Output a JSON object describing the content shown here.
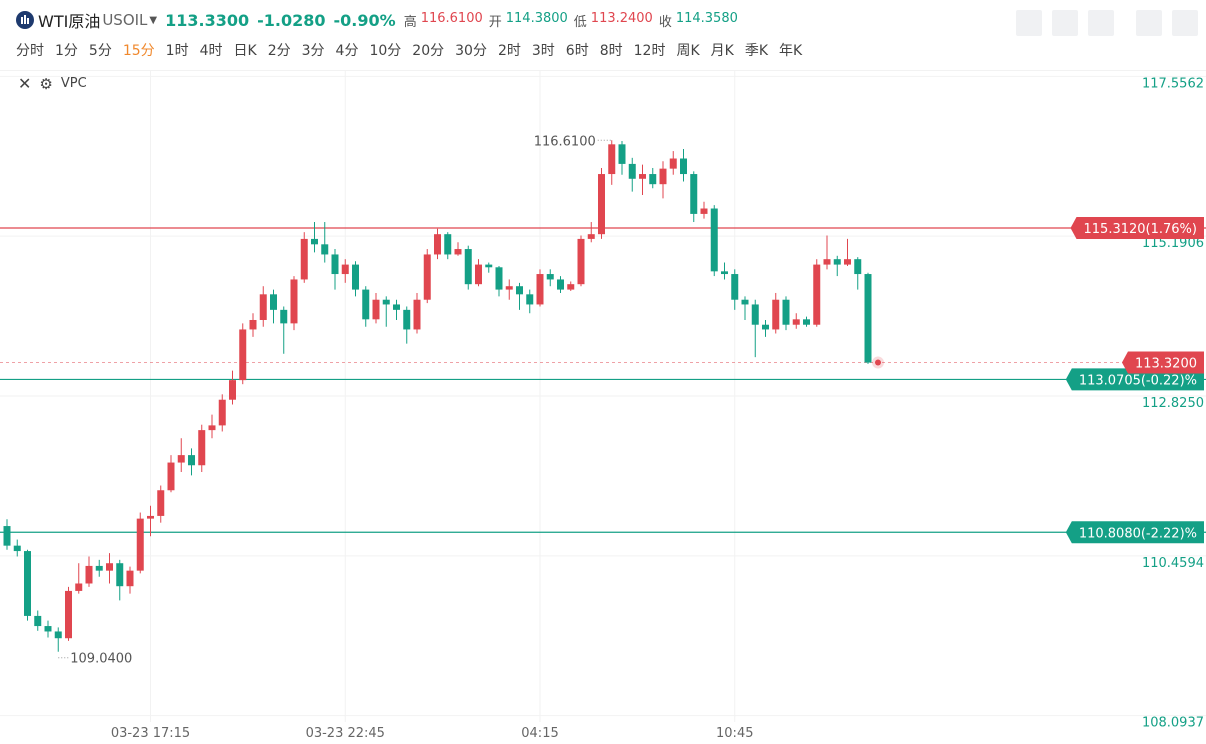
{
  "header": {
    "symbol": "WTI原油",
    "code": "USOIL",
    "price": "113.3300",
    "change": "-1.0280",
    "change_pct": "-0.90%",
    "stats": [
      {
        "label": "高",
        "value": "116.6100",
        "color": "#e0464f"
      },
      {
        "label": "开",
        "value": "114.3800",
        "color": "#14a086"
      },
      {
        "label": "低",
        "value": "113.2400",
        "color": "#e0464f"
      },
      {
        "label": "收",
        "value": "114.3580",
        "color": "#14a086"
      }
    ]
  },
  "periods": [
    "分时",
    "1分",
    "5分",
    "15分",
    "1时",
    "4时",
    "日K",
    "2分",
    "3分",
    "4分",
    "10分",
    "20分",
    "30分",
    "2时",
    "3时",
    "6时",
    "8时",
    "12时",
    "周K",
    "月K",
    "季K",
    "年K"
  ],
  "active_period": 3,
  "indicator": "VPC",
  "chart_data": {
    "type": "candlestick",
    "up_color": "#e0464f",
    "down_color": "#14a086",
    "categories": [
      null,
      null,
      null,
      null,
      null,
      null,
      null,
      null,
      null,
      null,
      null,
      null,
      null,
      null,
      "03-23 17:15",
      null,
      null,
      null,
      null,
      null,
      null,
      null,
      null,
      null,
      null,
      null,
      null,
      null,
      null,
      null,
      null,
      null,
      null,
      "03-23 22:45",
      null,
      null,
      null,
      null,
      null,
      null,
      null,
      null,
      null,
      null,
      null,
      null,
      null,
      null,
      null,
      null,
      null,
      null,
      "04:15",
      null,
      null,
      null,
      null,
      null,
      null,
      null,
      null,
      null,
      null,
      null,
      null,
      null,
      null,
      null,
      null,
      null,
      null,
      "10:45",
      null,
      null,
      null,
      null,
      null,
      null,
      null,
      null,
      null,
      null,
      null,
      null,
      null
    ],
    "open": [
      110.9,
      110.61,
      110.53,
      109.57,
      109.42,
      109.34,
      109.24,
      109.94,
      110.05,
      110.31,
      110.24,
      110.35,
      110.01,
      110.24,
      111.01,
      111.05,
      111.43,
      111.84,
      111.95,
      111.8,
      112.32,
      112.39,
      112.77,
      113.06,
      113.81,
      113.95,
      114.33,
      114.1,
      113.9,
      114.55,
      115.15,
      115.07,
      114.92,
      114.63,
      114.77,
      114.4,
      113.96,
      114.25,
      114.18,
      114.1,
      113.81,
      114.25,
      114.92,
      115.22,
      114.92,
      115.0,
      114.48,
      114.77,
      114.73,
      114.4,
      114.45,
      114.33,
      114.18,
      114.63,
      114.55,
      114.4,
      114.48,
      115.15,
      115.22,
      116.11,
      116.55,
      116.26,
      116.04,
      116.11,
      115.96,
      116.19,
      116.34,
      116.11,
      115.52,
      115.6,
      114.67,
      114.63,
      114.25,
      114.18,
      113.88,
      113.81,
      114.25,
      113.88,
      113.96,
      113.88,
      114.77,
      114.85,
      114.77,
      114.85,
      114.63
    ],
    "high": [
      111.0,
      110.7,
      110.55,
      109.65,
      109.5,
      109.4,
      110.0,
      110.35,
      110.45,
      110.4,
      110.5,
      110.4,
      110.3,
      111.1,
      111.2,
      111.5,
      111.95,
      112.2,
      112.05,
      112.4,
      112.55,
      112.85,
      113.2,
      113.9,
      114.05,
      114.45,
      114.4,
      114.15,
      114.6,
      115.25,
      115.4,
      115.4,
      115.0,
      114.85,
      114.82,
      114.45,
      114.35,
      114.3,
      114.25,
      114.15,
      114.35,
      115.0,
      115.3,
      115.25,
      115.1,
      115.05,
      114.85,
      114.8,
      114.75,
      114.55,
      114.5,
      114.4,
      114.7,
      114.7,
      114.6,
      114.52,
      115.2,
      115.4,
      116.2,
      116.61,
      116.6,
      116.35,
      116.25,
      116.2,
      116.3,
      116.45,
      116.48,
      116.15,
      115.7,
      115.65,
      114.8,
      114.7,
      114.3,
      114.25,
      113.95,
      114.35,
      114.3,
      114.05,
      114.0,
      114.85,
      115.2,
      114.9,
      115.15,
      114.88,
      114.65
    ],
    "low": [
      110.55,
      110.45,
      109.5,
      109.35,
      109.25,
      109.04,
      109.2,
      109.9,
      110.0,
      110.15,
      110.05,
      109.8,
      109.9,
      110.2,
      110.75,
      110.95,
      111.4,
      111.7,
      111.65,
      111.7,
      112.2,
      112.3,
      112.7,
      113.0,
      113.7,
      113.85,
      113.9,
      113.45,
      113.8,
      114.5,
      114.95,
      114.8,
      114.4,
      114.5,
      114.3,
      113.85,
      113.9,
      113.85,
      113.95,
      113.6,
      113.75,
      114.2,
      114.85,
      114.85,
      114.9,
      114.4,
      114.45,
      114.65,
      114.3,
      114.25,
      114.1,
      114.05,
      114.15,
      114.45,
      114.35,
      114.38,
      114.45,
      115.1,
      115.15,
      115.95,
      116.1,
      115.85,
      115.8,
      115.9,
      115.75,
      116.1,
      116.0,
      115.4,
      115.45,
      114.6,
      114.55,
      114.1,
      113.95,
      113.4,
      113.7,
      113.75,
      113.8,
      113.82,
      113.85,
      113.85,
      114.7,
      114.6,
      114.75,
      114.4,
      113.3
    ],
    "close": [
      110.61,
      110.53,
      109.57,
      109.42,
      109.34,
      109.24,
      109.94,
      110.05,
      110.31,
      110.24,
      110.35,
      110.01,
      110.24,
      111.01,
      111.05,
      111.43,
      111.84,
      111.95,
      111.8,
      112.32,
      112.39,
      112.77,
      113.06,
      113.81,
      113.95,
      114.33,
      114.1,
      113.9,
      114.55,
      115.15,
      115.07,
      114.92,
      114.63,
      114.77,
      114.4,
      113.96,
      114.25,
      114.18,
      114.1,
      113.81,
      114.25,
      114.92,
      115.22,
      114.92,
      115.0,
      114.48,
      114.77,
      114.73,
      114.4,
      114.45,
      114.33,
      114.18,
      114.63,
      114.55,
      114.4,
      114.48,
      115.15,
      115.22,
      116.11,
      116.55,
      116.26,
      116.04,
      116.11,
      115.96,
      116.19,
      116.34,
      116.11,
      115.52,
      115.6,
      114.67,
      114.63,
      114.25,
      114.18,
      113.88,
      113.81,
      114.25,
      113.88,
      113.96,
      113.88,
      114.77,
      114.85,
      114.77,
      114.85,
      114.63,
      113.32
    ],
    "ylim": [
      108.0,
      117.65
    ],
    "yticks": [
      {
        "value": 117.5562,
        "label": "117.5562"
      },
      {
        "value": 115.1906,
        "label": "115.1906"
      },
      {
        "value": 112.825,
        "label": "112.8250"
      },
      {
        "value": 110.4594,
        "label": "110.4594"
      },
      {
        "value": 108.0937,
        "label": "108.0937"
      }
    ],
    "grid": true,
    "levels": [
      {
        "value": 115.312,
        "label": "115.3120(1.76%)",
        "color": "#e0464f"
      },
      {
        "value": 113.0705,
        "label": "113.0705(-0.22)%",
        "color": "#14a086"
      },
      {
        "value": 110.808,
        "label": "110.8080(-2.22)%",
        "color": "#14a086"
      }
    ],
    "last_price": {
      "value": 113.32,
      "label": "113.3200",
      "color": "#e0464f"
    },
    "annotations": [
      {
        "value": 116.61,
        "label": "116.6100"
      },
      {
        "value": 109.04,
        "label": "109.0400"
      }
    ]
  }
}
